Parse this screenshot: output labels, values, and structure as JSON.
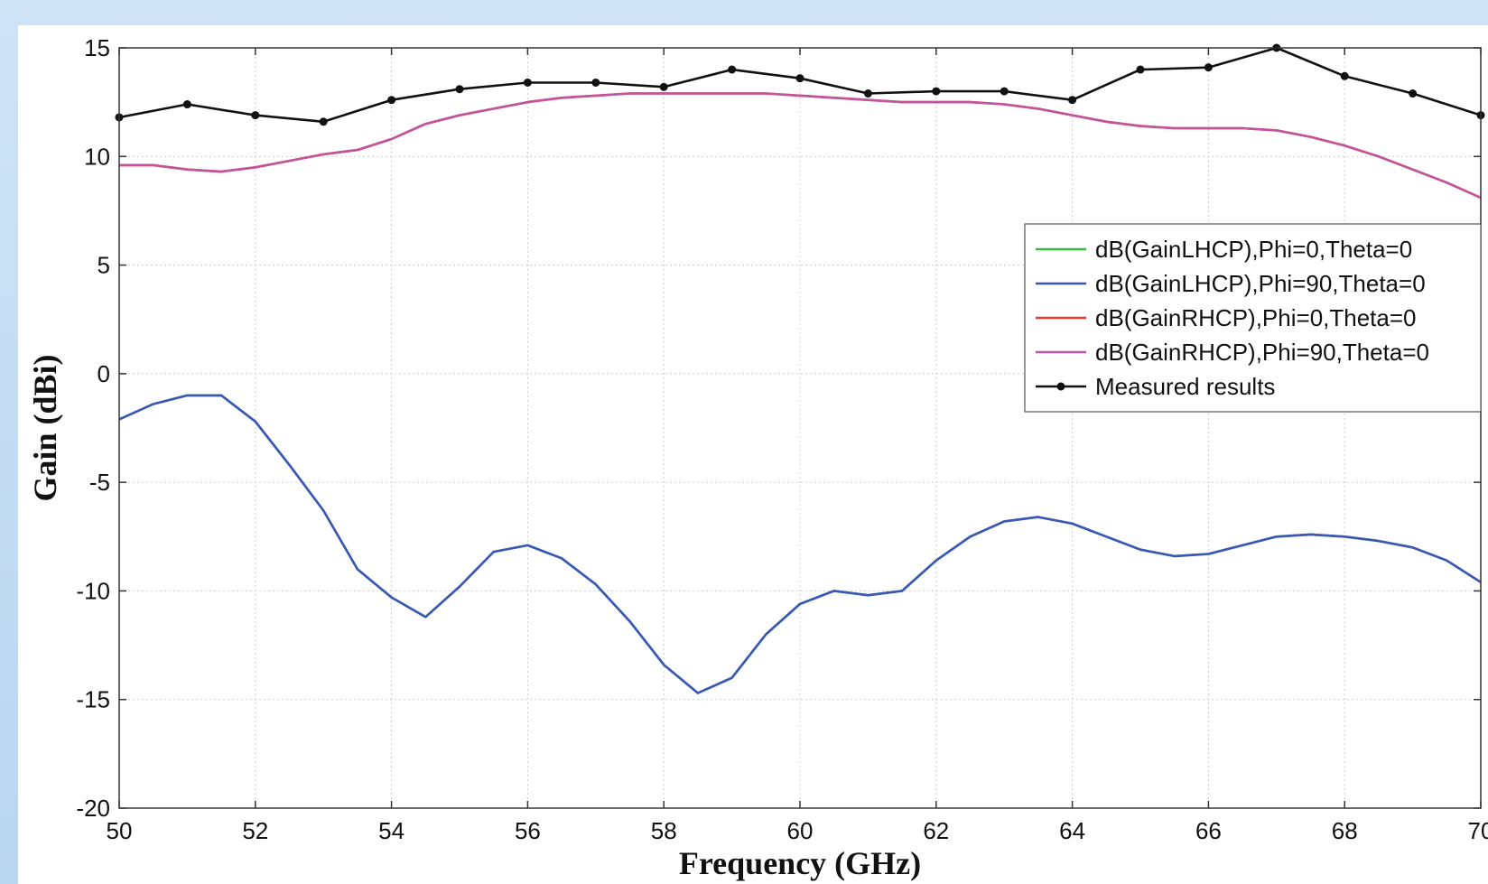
{
  "chart_data": {
    "type": "line",
    "xlabel": "Frequency (GHz)",
    "ylabel": "Gain (dBi)",
    "xlim": [
      50,
      70
    ],
    "ylim": [
      -20,
      15
    ],
    "xticks": [
      50,
      52,
      54,
      56,
      58,
      60,
      62,
      64,
      66,
      68,
      70
    ],
    "yticks": [
      15,
      10,
      5,
      0,
      -5,
      -10,
      -15,
      -20
    ],
    "xtick_labels": [
      "50",
      "52",
      "54",
      "56",
      "58",
      "60",
      "62",
      "64",
      "66",
      "68",
      "70"
    ],
    "ytick_labels": [
      "15",
      "10",
      "5",
      "0",
      "-5",
      "-10",
      "-15",
      "-20"
    ],
    "grid": true,
    "legend_position": "right",
    "series": [
      {
        "name": "dB(GainLHCP),Phi=0,Theta=0",
        "color": "#3cb83c",
        "markers": false,
        "x": [
          50,
          50.5,
          51,
          51.5,
          52,
          52.5,
          53,
          53.5,
          54,
          54.5,
          55,
          55.5,
          56,
          56.5,
          57,
          57.5,
          58,
          58.5,
          59,
          59.5,
          60,
          60.5,
          61,
          61.5,
          62,
          62.5,
          63,
          63.5,
          64,
          64.5,
          65,
          65.5,
          66,
          66.5,
          67,
          67.5,
          68,
          68.5,
          69,
          69.5,
          70
        ],
        "y": [
          -2.1,
          -1.4,
          -1.0,
          -1.0,
          -2.2,
          -4.2,
          -6.3,
          -9.0,
          -10.3,
          -11.2,
          -9.8,
          -8.2,
          -7.9,
          -8.5,
          -9.7,
          -11.4,
          -13.4,
          -14.7,
          -14.0,
          -12.0,
          -10.6,
          -10.0,
          -10.2,
          -10.0,
          -8.6,
          -7.5,
          -6.8,
          -6.6,
          -6.9,
          -7.5,
          -8.1,
          -8.4,
          -8.3,
          -7.9,
          -7.5,
          -7.4,
          -7.5,
          -7.7,
          -8.0,
          -8.6,
          -9.6
        ]
      },
      {
        "name": "dB(GainLHCP),Phi=90,Theta=0",
        "color": "#3b56b8",
        "markers": false,
        "x": [
          50,
          50.5,
          51,
          51.5,
          52,
          52.5,
          53,
          53.5,
          54,
          54.5,
          55,
          55.5,
          56,
          56.5,
          57,
          57.5,
          58,
          58.5,
          59,
          59.5,
          60,
          60.5,
          61,
          61.5,
          62,
          62.5,
          63,
          63.5,
          64,
          64.5,
          65,
          65.5,
          66,
          66.5,
          67,
          67.5,
          68,
          68.5,
          69,
          69.5,
          70
        ],
        "y": [
          -2.1,
          -1.4,
          -1.0,
          -1.0,
          -2.2,
          -4.2,
          -6.3,
          -9.0,
          -10.3,
          -11.2,
          -9.8,
          -8.2,
          -7.9,
          -8.5,
          -9.7,
          -11.4,
          -13.4,
          -14.7,
          -14.0,
          -12.0,
          -10.6,
          -10.0,
          -10.2,
          -10.0,
          -8.6,
          -7.5,
          -6.8,
          -6.6,
          -6.9,
          -7.5,
          -8.1,
          -8.4,
          -8.3,
          -7.9,
          -7.5,
          -7.4,
          -7.5,
          -7.7,
          -8.0,
          -8.6,
          -9.6
        ]
      },
      {
        "name": "dB(GainRHCP),Phi=0,Theta=0",
        "color": "#e83a2e",
        "markers": false,
        "x": [
          50,
          50.5,
          51,
          51.5,
          52,
          52.5,
          53,
          53.5,
          54,
          54.5,
          55,
          55.5,
          56,
          56.5,
          57,
          57.5,
          58,
          58.5,
          59,
          59.5,
          60,
          60.5,
          61,
          61.5,
          62,
          62.5,
          63,
          63.5,
          64,
          64.5,
          65,
          65.5,
          66,
          66.5,
          67,
          67.5,
          68,
          68.5,
          69,
          69.5,
          70
        ],
        "y": [
          9.6,
          9.6,
          9.4,
          9.3,
          9.5,
          9.8,
          10.1,
          10.3,
          10.8,
          11.5,
          11.9,
          12.2,
          12.5,
          12.7,
          12.8,
          12.9,
          12.9,
          12.9,
          12.9,
          12.9,
          12.8,
          12.7,
          12.6,
          12.5,
          12.5,
          12.5,
          12.4,
          12.2,
          11.9,
          11.6,
          11.4,
          11.3,
          11.3,
          11.3,
          11.2,
          10.9,
          10.5,
          10.0,
          9.4,
          8.8,
          8.1
        ]
      },
      {
        "name": "dB(GainRHCP),Phi=90,Theta=0",
        "color": "#c0559e",
        "markers": false,
        "x": [
          50,
          50.5,
          51,
          51.5,
          52,
          52.5,
          53,
          53.5,
          54,
          54.5,
          55,
          55.5,
          56,
          56.5,
          57,
          57.5,
          58,
          58.5,
          59,
          59.5,
          60,
          60.5,
          61,
          61.5,
          62,
          62.5,
          63,
          63.5,
          64,
          64.5,
          65,
          65.5,
          66,
          66.5,
          67,
          67.5,
          68,
          68.5,
          69,
          69.5,
          70
        ],
        "y": [
          9.6,
          9.6,
          9.4,
          9.3,
          9.5,
          9.8,
          10.1,
          10.3,
          10.8,
          11.5,
          11.9,
          12.2,
          12.5,
          12.7,
          12.8,
          12.9,
          12.9,
          12.9,
          12.9,
          12.9,
          12.8,
          12.7,
          12.6,
          12.5,
          12.5,
          12.5,
          12.4,
          12.2,
          11.9,
          11.6,
          11.4,
          11.3,
          11.3,
          11.3,
          11.2,
          10.9,
          10.5,
          10.0,
          9.4,
          8.8,
          8.1
        ]
      },
      {
        "name": "Measured results",
        "color": "#111111",
        "markers": true,
        "x": [
          50,
          51,
          52,
          53,
          54,
          55,
          56,
          57,
          58,
          59,
          60,
          61,
          62,
          63,
          64,
          65,
          66,
          67,
          68,
          69,
          70
        ],
        "y": [
          11.8,
          12.4,
          11.9,
          11.6,
          12.6,
          13.1,
          13.4,
          13.4,
          13.2,
          14.0,
          13.6,
          12.9,
          13.0,
          13.0,
          12.6,
          14.0,
          14.1,
          15.0,
          13.7,
          12.9,
          11.9
        ]
      }
    ]
  }
}
